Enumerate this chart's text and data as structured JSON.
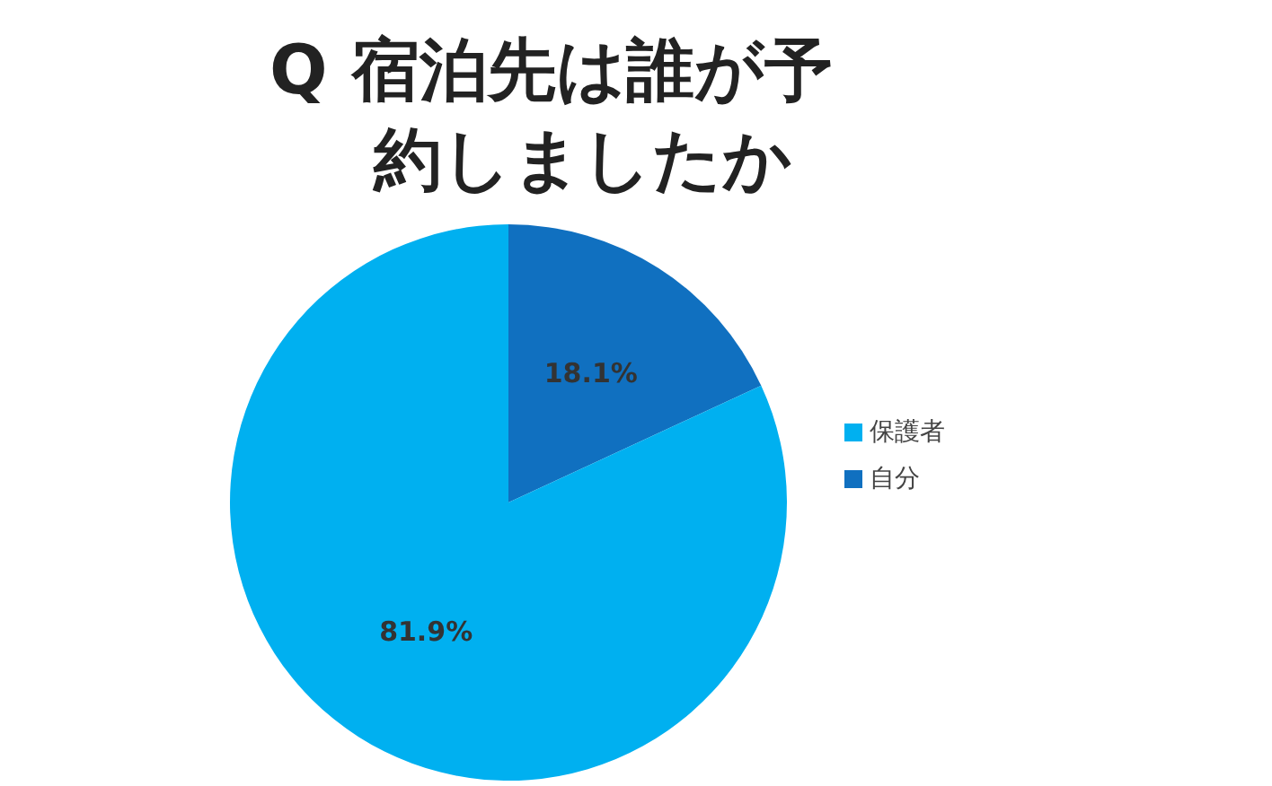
{
  "chart_data": {
    "type": "pie",
    "title": "Q 宿泊先は誰が予約しましたか",
    "categories": [
      "自分",
      "保護者"
    ],
    "values": [
      18.1,
      81.9
    ],
    "colors": [
      "#1070c0",
      "#00b0f0"
    ],
    "value_labels": [
      "18.1%",
      "81.9%"
    ],
    "legend": "right"
  }
}
